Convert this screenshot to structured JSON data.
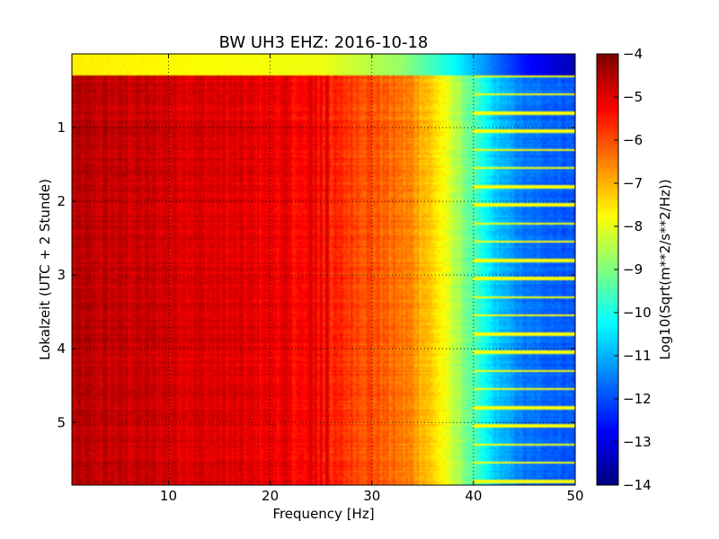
{
  "chart_data": {
    "type": "heatmap",
    "title": "BW UH3 EHZ: 2016-10-18",
    "xlabel": "Frequency [Hz]",
    "ylabel": "Lokalzeit (UTC + 2 Stunde)",
    "colorbar_label": "Log10(Sqrt(m**2/s**2/Hz))",
    "xlim": [
      0.5,
      50
    ],
    "ylim": [
      5.85,
      0
    ],
    "x_ticks": [
      10,
      20,
      30,
      40,
      50
    ],
    "y_ticks": [
      1,
      2,
      3,
      4,
      5
    ],
    "clim": [
      -14,
      -4
    ],
    "colorbar_ticks": [
      -4,
      -5,
      -6,
      -7,
      -8,
      -9,
      -10,
      -11,
      -12,
      -13,
      -14
    ],
    "colormap": "jet",
    "grid": true,
    "spectrum_profile": [
      {
        "f": 0.5,
        "v": -4.6
      },
      {
        "f": 10,
        "v": -4.8
      },
      {
        "f": 17,
        "v": -5.0
      },
      {
        "f": 21,
        "v": -5.1
      },
      {
        "f": 26,
        "v": -5.6
      },
      {
        "f": 30,
        "v": -6.0
      },
      {
        "f": 34,
        "v": -6.6
      },
      {
        "f": 36,
        "v": -7.3
      },
      {
        "f": 38,
        "v": -8.3
      },
      {
        "f": 40,
        "v": -9.5
      },
      {
        "f": 42,
        "v": -10.7
      },
      {
        "f": 45,
        "v": -11.6
      },
      {
        "f": 50,
        "v": -11.9
      }
    ],
    "first_row_profile": [
      {
        "f": 0.5,
        "v": -7.6
      },
      {
        "f": 25,
        "v": -7.9
      },
      {
        "f": 33,
        "v": -8.8
      },
      {
        "f": 38,
        "v": -10.2
      },
      {
        "f": 42,
        "v": -11.6
      },
      {
        "f": 45,
        "v": -12.6
      },
      {
        "f": 50,
        "v": -13.5
      }
    ],
    "first_row_end_hours": 0.3,
    "tonal_lines_hz": [
      21.4,
      24.0,
      24.5,
      25.0,
      25.6
    ],
    "tonal_line_level": -4.9,
    "disturbance_rows_hours": [
      0.3,
      0.55,
      0.8,
      1.05,
      1.3,
      1.55,
      1.8,
      2.05,
      2.3,
      2.55,
      2.8,
      3.05,
      3.3,
      3.55,
      3.8,
      4.05,
      4.3,
      4.55,
      4.8,
      5.05,
      5.3,
      5.55,
      5.8
    ],
    "disturbance_row_start_hz": 40,
    "disturbance_row_level": -7.8
  }
}
